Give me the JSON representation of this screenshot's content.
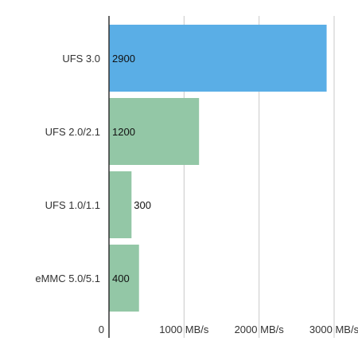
{
  "chart_data": {
    "type": "bar",
    "orientation": "horizontal",
    "categories": [
      "UFS 3.0",
      "UFS 2.0/2.1",
      "UFS 1.0/1.1",
      "eMMC 5.0/5.1"
    ],
    "values": [
      2900,
      1200,
      300,
      400
    ],
    "data_labels": [
      "2900",
      "1200",
      "300",
      "400"
    ],
    "bar_colors": [
      "#5aaee6",
      "#93c7a6",
      "#93c7a6",
      "#93c7a6"
    ],
    "xlim": [
      0,
      3000
    ],
    "x_ticks": [
      0,
      1000,
      2000,
      3000
    ],
    "x_tick_labels": [
      "0",
      "1000 MB/s",
      "2000 MB/s",
      "3000 MB/s"
    ],
    "grid": true,
    "title": "",
    "xlabel": "",
    "ylabel": ""
  }
}
